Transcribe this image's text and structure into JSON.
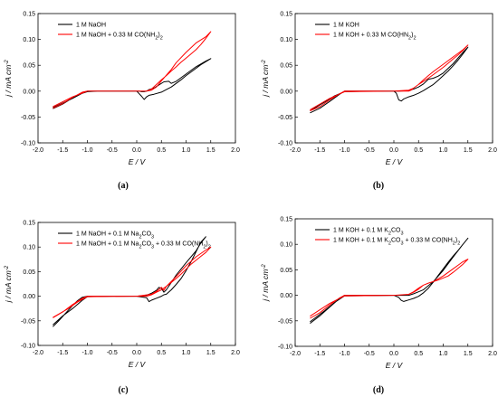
{
  "chart_data": [
    {
      "type": "line",
      "caption": "(a)",
      "xlabel": "E / V",
      "ylabel": "j / mA cm⁻²",
      "xlim": [
        -2.0,
        2.0
      ],
      "ylim": [
        -0.1,
        0.15
      ],
      "xticks": [
        "-2.0",
        "-1.5",
        "-1.0",
        "-0.5",
        "0.0",
        "0.5",
        "1.0",
        "1.5",
        "2.0"
      ],
      "yticks": [
        "-0.10",
        "-0.05",
        "0.00",
        "0.05",
        "0.10",
        "0.15"
      ],
      "legend_position": "top-left",
      "series": [
        {
          "name": "1 M NaOH",
          "color": "#000000",
          "x": [
            -1.7,
            -1.5,
            -1.3,
            -1.1,
            -1.0,
            -0.5,
            0.0,
            0.1,
            0.15,
            0.2,
            0.25,
            0.35,
            0.5,
            0.6,
            0.7,
            0.8,
            0.9,
            1.0,
            1.1,
            1.2,
            1.3,
            1.4,
            1.5,
            1.4,
            1.2,
            1.0,
            0.8,
            0.7,
            0.65,
            0.55,
            0.45,
            0.35,
            0.25,
            0.2,
            0.15,
            0.1,
            0.05,
            -0.3,
            -0.8,
            -1.0,
            -1.1,
            -1.3,
            -1.5,
            -1.7
          ],
          "y": [
            -0.034,
            -0.025,
            -0.013,
            -0.003,
            0.0,
            0.0,
            0.0,
            -0.01,
            -0.016,
            -0.011,
            -0.008,
            -0.006,
            -0.002,
            0.003,
            0.008,
            0.015,
            0.022,
            0.03,
            0.037,
            0.044,
            0.051,
            0.057,
            0.063,
            0.058,
            0.047,
            0.033,
            0.019,
            0.015,
            0.019,
            0.018,
            0.012,
            0.006,
            0.003,
            0.0,
            -0.001,
            -0.001,
            0.0,
            0.0,
            0.0,
            -0.001,
            -0.004,
            -0.014,
            -0.023,
            -0.032
          ]
        },
        {
          "name": "1 M NaOH + 0.33 M CO(NH₂)₂",
          "color": "#ff0000",
          "x": [
            -1.7,
            -1.5,
            -1.3,
            -1.1,
            -1.0,
            -0.5,
            0.0,
            0.1,
            0.15,
            0.2,
            0.3,
            0.4,
            0.5,
            0.6,
            0.7,
            0.8,
            0.9,
            1.0,
            1.1,
            1.2,
            1.3,
            1.4,
            1.5,
            1.4,
            1.2,
            1.0,
            0.8,
            0.7,
            0.5,
            0.4,
            0.3,
            0.2,
            -0.3,
            -1.0,
            -1.3,
            -1.7
          ],
          "y": [
            -0.033,
            -0.024,
            -0.012,
            -0.002,
            0.0,
            0.0,
            0.0,
            0.0,
            0.0,
            0.0,
            0.004,
            0.013,
            0.022,
            0.03,
            0.039,
            0.047,
            0.056,
            0.064,
            0.072,
            0.08,
            0.09,
            0.102,
            0.115,
            0.105,
            0.093,
            0.075,
            0.055,
            0.042,
            0.02,
            0.008,
            0.002,
            0.0,
            0.0,
            0.0,
            -0.011,
            -0.03
          ]
        }
      ]
    },
    {
      "type": "line",
      "caption": "(b)",
      "xlabel": "E / V",
      "ylabel": "j / mA cm⁻²",
      "xlim": [
        -2.0,
        2.0
      ],
      "ylim": [
        -0.1,
        0.15
      ],
      "xticks": [
        "-2.0",
        "-1.5",
        "-1.0",
        "-0.5",
        "0.0",
        "0.5",
        "1.0",
        "1.5",
        "2.0"
      ],
      "yticks": [
        "-0.10",
        "-0.05",
        "0.00",
        "0.05",
        "0.10",
        "0.15"
      ],
      "legend_position": "top-left",
      "series": [
        {
          "name": "1 M KOH",
          "color": "#000000",
          "x": [
            -1.7,
            -1.5,
            -1.3,
            -1.1,
            -1.0,
            -0.5,
            0.0,
            0.05,
            0.1,
            0.15,
            0.2,
            0.3,
            0.4,
            0.5,
            0.6,
            0.7,
            0.8,
            0.9,
            1.0,
            1.1,
            1.2,
            1.3,
            1.4,
            1.5,
            1.4,
            1.2,
            1.0,
            0.9,
            0.8,
            0.7,
            0.6,
            0.5,
            0.4,
            0.3,
            0.1,
            -0.5,
            -1.0,
            -1.2,
            -1.4,
            -1.7
          ],
          "y": [
            -0.042,
            -0.033,
            -0.02,
            -0.006,
            0.0,
            0.0,
            0.0,
            -0.004,
            -0.017,
            -0.019,
            -0.015,
            -0.011,
            -0.008,
            -0.004,
            0.001,
            0.007,
            0.013,
            0.021,
            0.03,
            0.039,
            0.049,
            0.06,
            0.072,
            0.085,
            0.075,
            0.053,
            0.035,
            0.029,
            0.025,
            0.023,
            0.014,
            0.008,
            0.004,
            0.001,
            0.0,
            0.0,
            -0.001,
            -0.009,
            -0.021,
            -0.038
          ]
        },
        {
          "name": "1 M KOH + 0.33 M CO(HN₂)₂",
          "color": "#ff0000",
          "x": [
            -1.7,
            -1.5,
            -1.3,
            -1.1,
            -1.0,
            -0.5,
            0.0,
            0.3,
            0.35,
            0.4,
            0.5,
            0.6,
            0.7,
            0.8,
            0.9,
            1.0,
            1.1,
            1.2,
            1.3,
            1.4,
            1.5,
            1.4,
            1.2,
            1.0,
            0.8,
            0.7,
            0.6,
            0.5,
            0.4,
            0.3,
            0.0,
            -1.0,
            -1.3,
            -1.7
          ],
          "y": [
            -0.038,
            -0.03,
            -0.017,
            -0.005,
            0.0,
            0.0,
            0.0,
            0.0,
            0.002,
            0.006,
            0.013,
            0.019,
            0.025,
            0.032,
            0.039,
            0.046,
            0.054,
            0.062,
            0.07,
            0.079,
            0.089,
            0.08,
            0.066,
            0.052,
            0.038,
            0.03,
            0.022,
            0.013,
            0.006,
            0.002,
            0.0,
            -0.001,
            -0.014,
            -0.036
          ]
        }
      ]
    },
    {
      "type": "line",
      "caption": "(c)",
      "xlabel": "E / V",
      "ylabel": "j / mA cm⁻²",
      "xlim": [
        -2.0,
        2.0
      ],
      "ylim": [
        -0.1,
        0.15
      ],
      "xticks": [
        "-2.0",
        "-1.5",
        "-1.0",
        "-0.5",
        "0.0",
        "0.5",
        "1.0",
        "1.5",
        "2.0"
      ],
      "yticks": [
        "-0.10",
        "-0.05",
        "0.00",
        "0.05",
        "0.10",
        "0.15"
      ],
      "legend_position": "top-left",
      "series": [
        {
          "name": "1 M NaOH + 0.1 M Na₂CO₃",
          "color": "#000000",
          "x": [
            -1.7,
            -1.6,
            -1.5,
            -1.4,
            -1.3,
            -1.2,
            -1.1,
            -1.0,
            -0.5,
            0.0,
            0.2,
            0.25,
            0.3,
            0.4,
            0.5,
            0.55,
            0.6,
            0.7,
            0.8,
            0.9,
            1.0,
            1.1,
            1.2,
            1.3,
            1.4,
            1.3,
            1.2,
            1.0,
            0.8,
            0.7,
            0.6,
            0.55,
            0.5,
            0.45,
            0.4,
            0.3,
            0.2,
            0.0,
            -0.5,
            -1.0,
            -1.1,
            -1.3,
            -1.5,
            -1.7
          ],
          "y": [
            -0.062,
            -0.052,
            -0.041,
            -0.03,
            -0.019,
            -0.009,
            -0.002,
            0.0,
            0.0,
            0.0,
            -0.003,
            -0.011,
            -0.008,
            -0.004,
            0.0,
            0.003,
            0.004,
            0.013,
            0.024,
            0.036,
            0.052,
            0.07,
            0.09,
            0.11,
            0.121,
            0.108,
            0.092,
            0.068,
            0.043,
            0.028,
            0.013,
            0.008,
            0.016,
            0.018,
            0.012,
            0.006,
            0.002,
            0.0,
            0.0,
            -0.001,
            -0.008,
            -0.025,
            -0.04,
            -0.058
          ]
        },
        {
          "name": "1 M NaOH + 0.1 M Na₂CO₃ + 0.33 M CO(NH₂)₂",
          "color": "#ff0000",
          "x": [
            -1.7,
            -1.5,
            -1.3,
            -1.1,
            -1.0,
            -0.5,
            0.0,
            0.2,
            0.3,
            0.4,
            0.5,
            0.6,
            0.7,
            0.8,
            0.9,
            1.0,
            1.1,
            1.2,
            1.3,
            1.4,
            1.5,
            1.4,
            1.2,
            1.0,
            0.8,
            0.6,
            0.55,
            0.5,
            0.4,
            0.3,
            0.0,
            -1.0,
            -1.2,
            -1.4,
            -1.7
          ],
          "y": [
            -0.044,
            -0.032,
            -0.017,
            -0.004,
            0.0,
            0.0,
            0.0,
            0.0,
            0.003,
            0.008,
            0.013,
            0.02,
            0.028,
            0.036,
            0.045,
            0.055,
            0.065,
            0.073,
            0.081,
            0.089,
            0.1,
            0.094,
            0.08,
            0.062,
            0.04,
            0.02,
            0.012,
            0.018,
            0.01,
            0.004,
            0.0,
            -0.001,
            -0.012,
            -0.026,
            -0.043
          ]
        }
      ]
    },
    {
      "type": "line",
      "caption": "(d)",
      "xlabel": "E / V",
      "ylabel": "j / mA cm⁻²",
      "xlim": [
        -2.0,
        2.0
      ],
      "ylim": [
        -0.1,
        0.15
      ],
      "xticks": [
        "-2.0",
        "-1.5",
        "-1.0",
        "-0.5",
        "0.0",
        "0.5",
        "1.0",
        "1.5",
        "2.0"
      ],
      "yticks": [
        "-0.10",
        "-0.05",
        "0.00",
        "0.05",
        "0.10",
        "0.15"
      ],
      "legend_position": "top-left",
      "series": [
        {
          "name": "1 M KOH + 0.1 M K₂CO₃",
          "color": "#000000",
          "x": [
            -1.7,
            -1.5,
            -1.3,
            -1.1,
            -1.0,
            -0.5,
            0.0,
            0.1,
            0.15,
            0.2,
            0.3,
            0.4,
            0.5,
            0.6,
            0.7,
            0.8,
            0.9,
            1.0,
            1.1,
            1.2,
            1.3,
            1.4,
            1.5,
            1.4,
            1.2,
            1.0,
            0.8,
            0.7,
            0.6,
            0.5,
            0.4,
            0.3,
            0.0,
            -1.0,
            -1.2,
            -1.4,
            -1.7
          ],
          "y": [
            -0.055,
            -0.04,
            -0.023,
            -0.006,
            0.0,
            0.0,
            0.0,
            -0.004,
            -0.01,
            -0.012,
            -0.009,
            -0.006,
            -0.002,
            0.005,
            0.014,
            0.026,
            0.039,
            0.052,
            0.065,
            0.077,
            0.088,
            0.1,
            0.112,
            0.1,
            0.075,
            0.049,
            0.027,
            0.019,
            0.011,
            0.007,
            0.003,
            0.0,
            0.0,
            -0.001,
            -0.014,
            -0.03,
            -0.052
          ]
        },
        {
          "name": "1 M KOH + 0.1 M K₂CO₃ + 0.33 M CO(NH₂)₂",
          "color": "#ff0000",
          "x": [
            -1.7,
            -1.5,
            -1.3,
            -1.1,
            -1.0,
            -0.5,
            0.0,
            0.3,
            0.4,
            0.5,
            0.6,
            0.7,
            0.8,
            0.9,
            1.0,
            1.1,
            1.2,
            1.3,
            1.4,
            1.5,
            1.4,
            1.2,
            1.0,
            0.8,
            0.7,
            0.6,
            0.5,
            0.4,
            0.3,
            0.0,
            -1.0,
            -1.3,
            -1.7
          ],
          "y": [
            -0.045,
            -0.034,
            -0.019,
            -0.005,
            0.0,
            0.0,
            0.0,
            0.002,
            0.007,
            0.014,
            0.02,
            0.024,
            0.027,
            0.03,
            0.034,
            0.038,
            0.045,
            0.053,
            0.061,
            0.071,
            0.066,
            0.052,
            0.038,
            0.027,
            0.024,
            0.02,
            0.012,
            0.006,
            0.002,
            0.0,
            -0.001,
            -0.016,
            -0.041
          ]
        }
      ]
    }
  ]
}
